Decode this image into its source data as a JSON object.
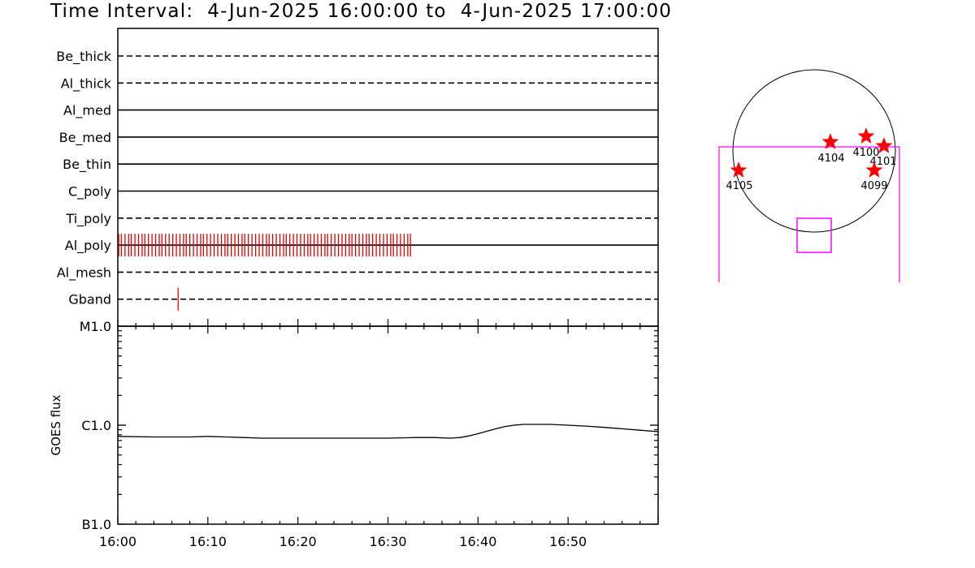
{
  "header": {
    "label": "Time Interval:",
    "start": "4-Jun-2025 16:00:00",
    "to": "to",
    "end": "4-Jun-2025 17:00:00"
  },
  "colors": {
    "event": "#e00000",
    "fov": "#ff00ff",
    "star": "#ff0000",
    "ink": "#000000"
  },
  "chart_data": [
    {
      "type": "timeline",
      "x_range": [
        "16:00",
        "17:00"
      ],
      "rows": [
        {
          "name": "Be_thick",
          "style": "dashed"
        },
        {
          "name": "Al_thick",
          "style": "dashed"
        },
        {
          "name": "Al_med",
          "style": "solid"
        },
        {
          "name": "Be_med",
          "style": "solid"
        },
        {
          "name": "Be_thin",
          "style": "solid"
        },
        {
          "name": "C_poly",
          "style": "solid"
        },
        {
          "name": "Ti_poly",
          "style": "dashed"
        },
        {
          "name": "Al_poly",
          "style": "solid",
          "events_minutes": [
            0.1,
            0.4,
            0.8,
            1.2,
            1.5,
            1.9,
            2.3,
            2.7,
            3.0,
            3.4,
            3.8,
            4.2,
            4.6,
            4.9,
            5.3,
            5.7,
            6.1,
            6.5,
            6.9,
            7.3,
            7.6,
            8.0,
            8.4,
            8.8,
            9.2,
            9.5,
            9.9,
            10.3,
            10.7,
            11.1,
            11.5,
            11.9,
            12.2,
            12.6,
            13.0,
            13.4,
            13.8,
            14.1,
            14.5,
            14.9,
            15.3,
            15.7,
            16.1,
            16.5,
            16.8,
            17.2,
            17.6,
            18.0,
            18.4,
            18.7,
            19.1,
            19.5,
            19.9,
            20.3,
            20.7,
            21.1,
            21.4,
            21.8,
            22.2,
            22.6,
            23.0,
            23.3,
            23.7,
            24.1,
            24.5,
            24.9,
            25.3,
            25.7,
            26.0,
            26.4,
            26.8,
            27.2,
            27.6,
            27.9,
            28.3,
            28.7,
            29.1,
            29.5,
            29.9,
            30.3,
            30.6,
            31.0,
            31.4,
            31.8,
            32.2,
            32.5
          ]
        },
        {
          "name": "Al_mesh",
          "style": "dashed"
        },
        {
          "name": "Gband",
          "style": "dashed",
          "events_minutes": [
            6.7
          ]
        }
      ]
    },
    {
      "type": "line",
      "ylabel": "GOES flux",
      "y_scale": "log",
      "y_ticks": [
        "M1.0",
        "C1.0",
        "B1.0"
      ],
      "ylim": [
        1e-07,
        1e-05
      ],
      "x_ticks": [
        "16:00",
        "16:10",
        "16:20",
        "16:30",
        "16:40",
        "16:50"
      ],
      "x_range_minutes": [
        0,
        60
      ],
      "series": [
        {
          "x_minutes": [
            0,
            4,
            8,
            10,
            12,
            14,
            16,
            20,
            25,
            30,
            33,
            35,
            37,
            38,
            39,
            40,
            41,
            42,
            43,
            44,
            45,
            46,
            47,
            48,
            50,
            52,
            54,
            56,
            58,
            60
          ],
          "values": [
            7.7e-07,
            7.6e-07,
            7.6e-07,
            7.7e-07,
            7.6e-07,
            7.5e-07,
            7.4e-07,
            7.4e-07,
            7.4e-07,
            7.4e-07,
            7.5e-07,
            7.5e-07,
            7.4e-07,
            7.5e-07,
            7.8e-07,
            8.2e-07,
            8.7e-07,
            9.2e-07,
            9.7e-07,
            1e-06,
            1.02e-06,
            1.02e-06,
            1.02e-06,
            1.02e-06,
            1e-06,
            9.8e-07,
            9.5e-07,
            9.2e-07,
            8.9e-07,
            8.6e-07
          ]
        }
      ]
    }
  ],
  "solar_map": {
    "regions": [
      {
        "label": "4104"
      },
      {
        "label": "4100"
      },
      {
        "label": "4101"
      },
      {
        "label": "4105"
      },
      {
        "label": "4099"
      }
    ]
  }
}
